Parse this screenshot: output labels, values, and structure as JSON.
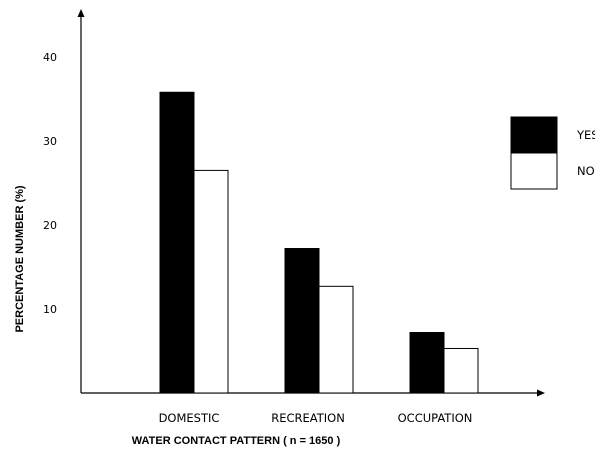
{
  "chart_data": {
    "type": "bar",
    "title": "",
    "xlabel": "WATER CONTACT PATTERN ( n = 1650 )",
    "ylabel": "PERCENTAGE NUMBER (%)",
    "categories": [
      "DOMESTIC",
      "RECREATION",
      "OCCUPATION"
    ],
    "series": [
      {
        "name": "YES",
        "values": [
          35.8,
          17.2,
          7.2
        ],
        "color": "#000000"
      },
      {
        "name": "NO",
        "values": [
          26.5,
          12.7,
          5.3
        ],
        "color": "#ffffff"
      }
    ],
    "yticks": [
      10,
      20,
      30,
      40
    ],
    "ylim": [
      0,
      40
    ],
    "grid": false,
    "legend": "right"
  }
}
